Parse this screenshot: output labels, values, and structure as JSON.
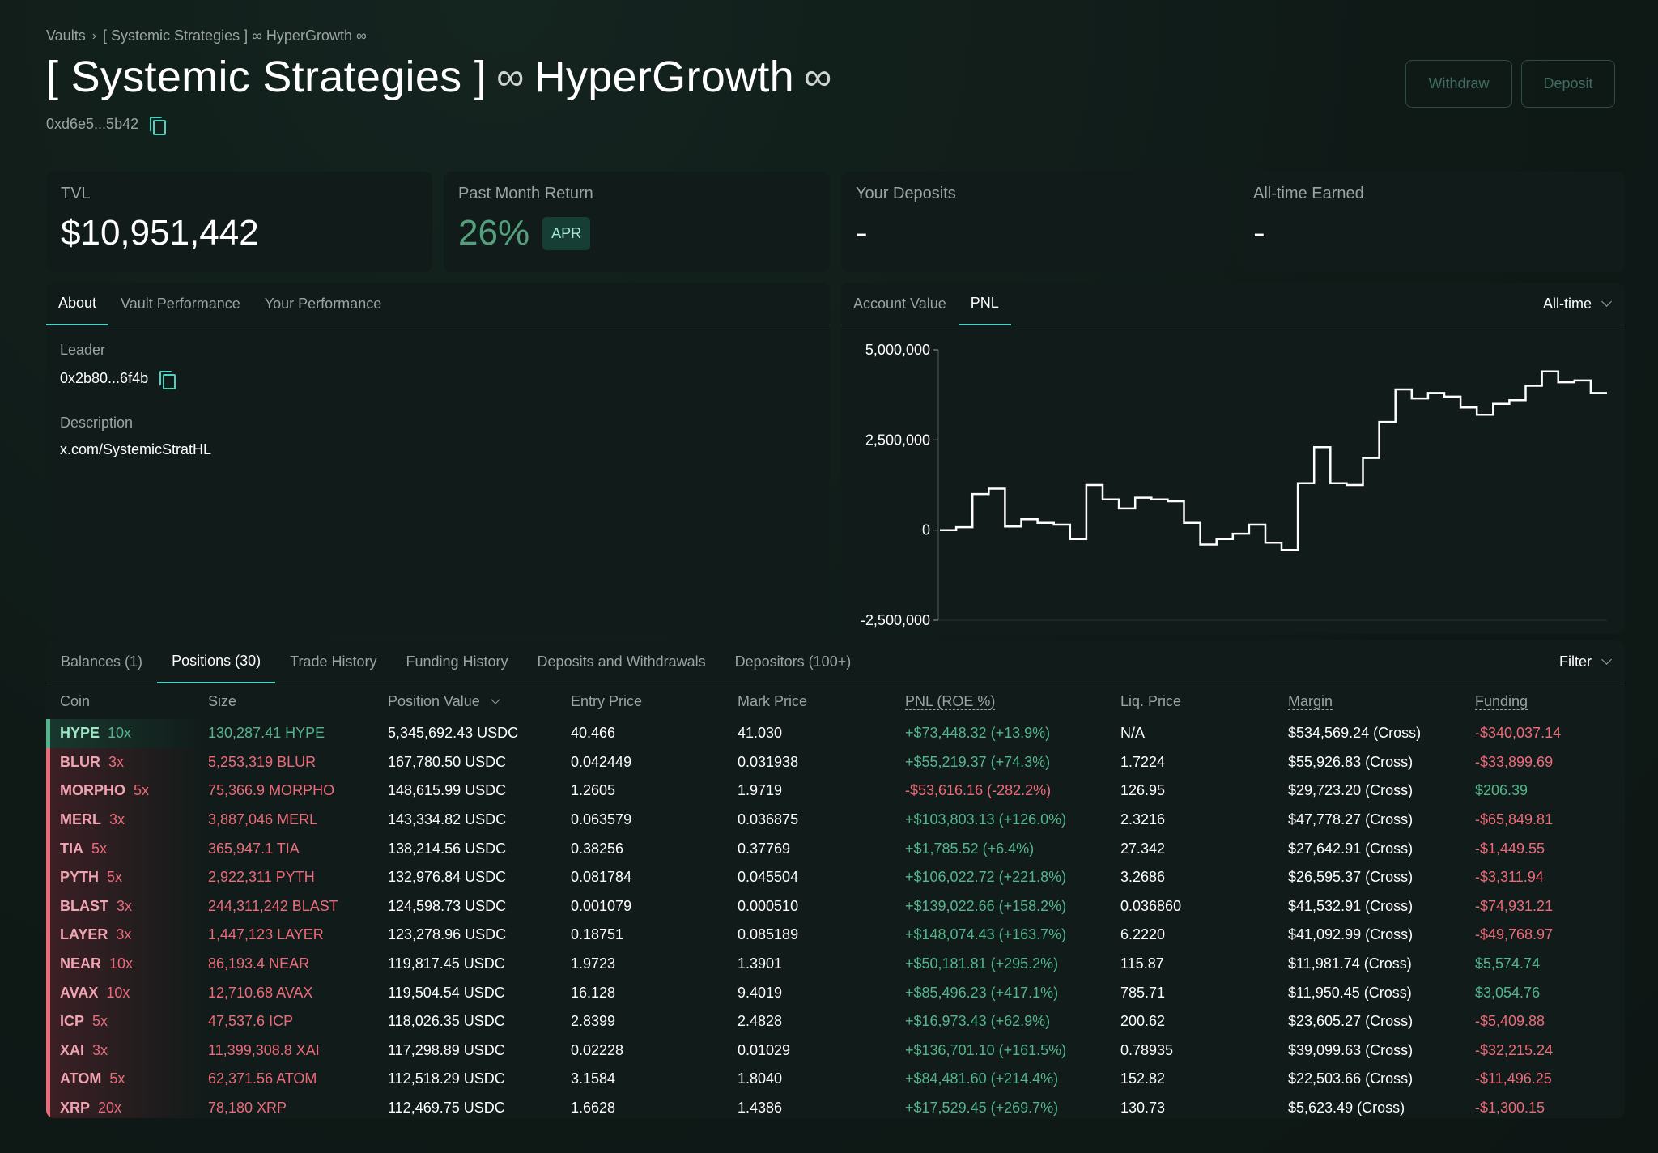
{
  "breadcrumb": {
    "root": "Vaults",
    "current": "[ Systemic Strategies ] ∞ HyperGrowth ∞"
  },
  "title": {
    "part1": "[ Systemic Strategies ]",
    "part2": "HyperGrowth",
    "infinity": "∞"
  },
  "vault_address": "0xd6e5...5b42",
  "buttons": {
    "withdraw": "Withdraw",
    "deposit": "Deposit"
  },
  "stats": {
    "tvl": {
      "label": "TVL",
      "value": "$10,951,442"
    },
    "past_month": {
      "label": "Past Month Return",
      "value": "26%",
      "badge": "APR"
    },
    "your_deposits": {
      "label": "Your Deposits",
      "value": "-"
    },
    "all_time_earned": {
      "label": "All-time Earned",
      "value": "-"
    }
  },
  "about_panel": {
    "tabs": [
      "About",
      "Vault Performance",
      "Your Performance"
    ],
    "active_tab": "About",
    "leader_label": "Leader",
    "leader_value": "0x2b80...6f4b",
    "description_label": "Description",
    "description_value": "x.com/SystemicStratHL"
  },
  "chart_panel": {
    "tabs": [
      "Account Value",
      "PNL"
    ],
    "active_tab": "PNL",
    "range": "All-time"
  },
  "chart_data": {
    "type": "line",
    "step": true,
    "title": "",
    "xlabel": "",
    "ylabel": "",
    "ylim": [
      -2500000,
      5000000
    ],
    "yticks": [
      "5,000,000",
      "2,500,000",
      "0",
      "-2,500,000"
    ],
    "yticks_values": [
      5000000,
      2500000,
      0,
      -2500000
    ],
    "grid": false,
    "color": "#ffffff",
    "values": [
      0,
      80000,
      1000000,
      1150000,
      100000,
      300000,
      200000,
      150000,
      -250000,
      1250000,
      850000,
      600000,
      900000,
      850000,
      800000,
      200000,
      -400000,
      -250000,
      -100000,
      150000,
      -350000,
      -550000,
      1300000,
      2300000,
      1300000,
      1250000,
      2000000,
      3000000,
      3900000,
      3650000,
      3800000,
      3700000,
      3400000,
      3200000,
      3500000,
      3600000,
      4000000,
      4400000,
      4100000,
      4150000,
      3800000
    ]
  },
  "positions_panel": {
    "tabs": [
      "Balances (1)",
      "Positions (30)",
      "Trade History",
      "Funding History",
      "Deposits and Withdrawals",
      "Depositors (100+)"
    ],
    "active_tab": "Positions (30)",
    "filter": "Filter",
    "columns": [
      "Coin",
      "Size",
      "Position Value",
      "Entry Price",
      "Mark Price",
      "PNL (ROE %)",
      "Liq. Price",
      "Margin",
      "Funding"
    ],
    "rows": [
      {
        "coin": "HYPE",
        "lev": "10x",
        "side": "long",
        "size": "130,287.41 HYPE",
        "value": "5,345,692.43 USDC",
        "entry": "40.466",
        "mark": "41.030",
        "pnl": "+$73,448.32 (+13.9%)",
        "liq": "N/A",
        "margin": "$534,569.24 (Cross)",
        "funding": "-$340,037.14"
      },
      {
        "coin": "BLUR",
        "lev": "3x",
        "side": "short",
        "size": "5,253,319 BLUR",
        "value": "167,780.50 USDC",
        "entry": "0.042449",
        "mark": "0.031938",
        "pnl": "+$55,219.37 (+74.3%)",
        "liq": "1.7224",
        "margin": "$55,926.83 (Cross)",
        "funding": "-$33,899.69"
      },
      {
        "coin": "MORPHO",
        "lev": "5x",
        "side": "short",
        "size": "75,366.9 MORPHO",
        "value": "148,615.99 USDC",
        "entry": "1.2605",
        "mark": "1.9719",
        "pnl": "-$53,616.16 (-282.2%)",
        "liq": "126.95",
        "margin": "$29,723.20 (Cross)",
        "funding": "$206.39"
      },
      {
        "coin": "MERL",
        "lev": "3x",
        "side": "short",
        "size": "3,887,046 MERL",
        "value": "143,334.82 USDC",
        "entry": "0.063579",
        "mark": "0.036875",
        "pnl": "+$103,803.13 (+126.0%)",
        "liq": "2.3216",
        "margin": "$47,778.27 (Cross)",
        "funding": "-$65,849.81"
      },
      {
        "coin": "TIA",
        "lev": "5x",
        "side": "short",
        "size": "365,947.1 TIA",
        "value": "138,214.56 USDC",
        "entry": "0.38256",
        "mark": "0.37769",
        "pnl": "+$1,785.52 (+6.4%)",
        "liq": "27.342",
        "margin": "$27,642.91 (Cross)",
        "funding": "-$1,449.55"
      },
      {
        "coin": "PYTH",
        "lev": "5x",
        "side": "short",
        "size": "2,922,311 PYTH",
        "value": "132,976.84 USDC",
        "entry": "0.081784",
        "mark": "0.045504",
        "pnl": "+$106,022.72 (+221.8%)",
        "liq": "3.2686",
        "margin": "$26,595.37 (Cross)",
        "funding": "-$3,311.94"
      },
      {
        "coin": "BLAST",
        "lev": "3x",
        "side": "short",
        "size": "244,311,242 BLAST",
        "value": "124,598.73 USDC",
        "entry": "0.001079",
        "mark": "0.000510",
        "pnl": "+$139,022.66 (+158.2%)",
        "liq": "0.036860",
        "margin": "$41,532.91 (Cross)",
        "funding": "-$74,931.21"
      },
      {
        "coin": "LAYER",
        "lev": "3x",
        "side": "short",
        "size": "1,447,123 LAYER",
        "value": "123,278.96 USDC",
        "entry": "0.18751",
        "mark": "0.085189",
        "pnl": "+$148,074.43 (+163.7%)",
        "liq": "6.2220",
        "margin": "$41,092.99 (Cross)",
        "funding": "-$49,768.97"
      },
      {
        "coin": "NEAR",
        "lev": "10x",
        "side": "short",
        "size": "86,193.4 NEAR",
        "value": "119,817.45 USDC",
        "entry": "1.9723",
        "mark": "1.3901",
        "pnl": "+$50,181.81 (+295.2%)",
        "liq": "115.87",
        "margin": "$11,981.74 (Cross)",
        "funding": "$5,574.74"
      },
      {
        "coin": "AVAX",
        "lev": "10x",
        "side": "short",
        "size": "12,710.68 AVAX",
        "value": "119,504.54 USDC",
        "entry": "16.128",
        "mark": "9.4019",
        "pnl": "+$85,496.23 (+417.1%)",
        "liq": "785.71",
        "margin": "$11,950.45 (Cross)",
        "funding": "$3,054.76"
      },
      {
        "coin": "ICP",
        "lev": "5x",
        "side": "short",
        "size": "47,537.6 ICP",
        "value": "118,026.35 USDC",
        "entry": "2.8399",
        "mark": "2.4828",
        "pnl": "+$16,973.43 (+62.9%)",
        "liq": "200.62",
        "margin": "$23,605.27 (Cross)",
        "funding": "-$5,409.88"
      },
      {
        "coin": "XAI",
        "lev": "3x",
        "side": "short",
        "size": "11,399,308.8 XAI",
        "value": "117,298.89 USDC",
        "entry": "0.02228",
        "mark": "0.01029",
        "pnl": "+$136,701.10 (+161.5%)",
        "liq": "0.78935",
        "margin": "$39,099.63 (Cross)",
        "funding": "-$32,215.24"
      },
      {
        "coin": "ATOM",
        "lev": "5x",
        "side": "short",
        "size": "62,371.56 ATOM",
        "value": "112,518.29 USDC",
        "entry": "3.1584",
        "mark": "1.8040",
        "pnl": "+$84,481.60 (+214.4%)",
        "liq": "152.82",
        "margin": "$22,503.66 (Cross)",
        "funding": "-$11,496.25"
      },
      {
        "coin": "XRP",
        "lev": "20x",
        "side": "short",
        "size": "78,180 XRP",
        "value": "112,469.75 USDC",
        "entry": "1.6628",
        "mark": "1.4386",
        "pnl": "+$17,529.45 (+269.7%)",
        "liq": "130.73",
        "margin": "$5,623.49 (Cross)",
        "funding": "-$1,300.15"
      }
    ]
  },
  "colors": {
    "accent": "#50d2c1",
    "positive": "#53b58e",
    "negative": "#eb6b7b",
    "background": "#0f1a17",
    "panel": "#111b19"
  }
}
